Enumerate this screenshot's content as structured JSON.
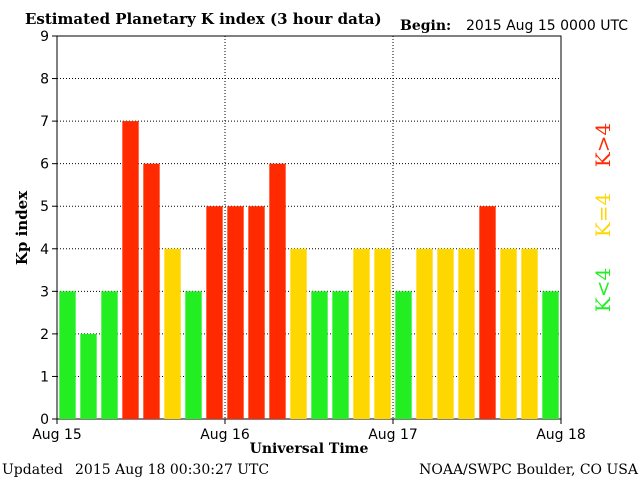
{
  "header": {
    "title": "Estimated Planetary K index (3 hour data)",
    "begin_label": "Begin:",
    "begin_value": "2015 Aug 15 0000 UTC"
  },
  "footer": {
    "updated_label": "Updated",
    "updated_value": "2015 Aug 18 00:30:27 UTC",
    "source": "NOAA/SWPC Boulder, CO USA"
  },
  "legend": [
    {
      "label": "K>4",
      "color": "#ff2a00"
    },
    {
      "label": "K=4",
      "color": "#ffd700"
    },
    {
      "label": "K<4",
      "color": "#22ee22"
    }
  ],
  "chart_data": {
    "type": "bar",
    "title": "Estimated Planetary K index (3 hour data)",
    "xlabel": "Universal Time",
    "ylabel": "Kp index",
    "ylim": [
      0,
      9
    ],
    "yticks": [
      0,
      1,
      2,
      3,
      4,
      5,
      6,
      7,
      8,
      9
    ],
    "xticks": [
      "Aug 15",
      "Aug 16",
      "Aug 17",
      "Aug 18"
    ],
    "grid": true,
    "values": [
      3,
      2,
      3,
      7,
      6,
      4,
      3,
      5,
      5,
      5,
      6,
      4,
      3,
      3,
      4,
      4,
      3,
      4,
      4,
      4,
      5,
      4,
      4,
      3
    ],
    "colors": {
      "below": "#22ee22",
      "equal": "#ffd700",
      "above": "#ff2a00"
    }
  }
}
